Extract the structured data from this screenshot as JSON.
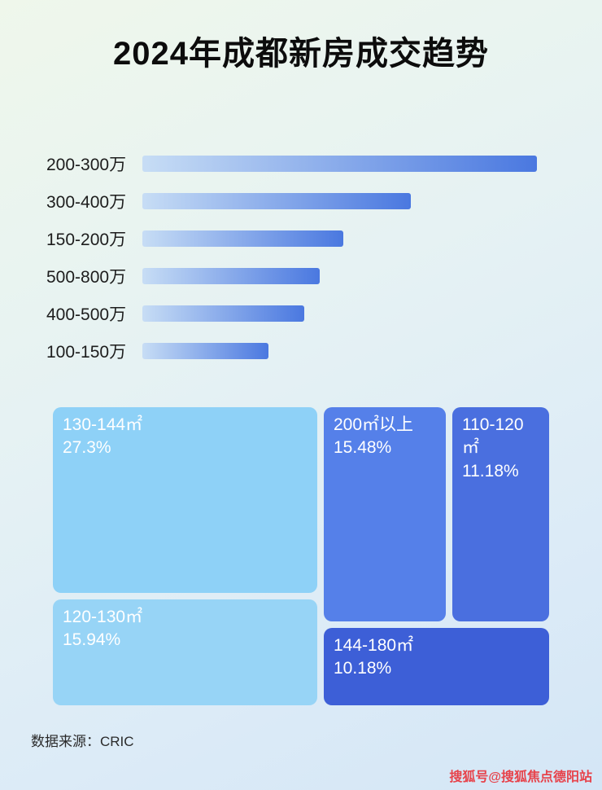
{
  "title": "2024年成都新房成交趋势",
  "colors": {
    "bar_gradient_start": "#c7ddf5",
    "bar_gradient_end": "#4a78e0"
  },
  "treemap_blocks": [
    {
      "label": "130-144㎡",
      "pct_text": "27.3%",
      "color": "#8ed1f7"
    },
    {
      "label": "120-130㎡",
      "pct_text": "15.94%",
      "color": "#97d4f6"
    },
    {
      "label": "200㎡以上",
      "pct_text": "15.48%",
      "color": "#5580e9"
    },
    {
      "label": "110-120㎡",
      "pct_text": "11.18%",
      "color": "#4a6fdf"
    },
    {
      "label": "144-180㎡",
      "pct_text": "10.18%",
      "color": "#3d5fd7"
    }
  ],
  "footer": {
    "source": "数据来源：CRIC"
  },
  "watermark": "搜狐号@搜狐焦点德阳站",
  "chart_data": [
    {
      "type": "bar",
      "orientation": "horizontal",
      "title": "2024年成都新房成交趋势",
      "categories": [
        "200-300万",
        "300-400万",
        "150-200万",
        "500-800万",
        "400-500万",
        "100-150万"
      ],
      "values": [
        100,
        68,
        51,
        45,
        41,
        32
      ],
      "value_note": "relative bar length as % of longest bar; no numeric axis or data labels shown",
      "xlabel": "",
      "ylabel": "",
      "grid": false,
      "legend": false
    },
    {
      "type": "treemap",
      "title": "",
      "categories": [
        "130-144㎡",
        "120-130㎡",
        "200㎡以上",
        "110-120㎡",
        "144-180㎡"
      ],
      "values": [
        27.3,
        15.94,
        15.48,
        11.18,
        10.18
      ],
      "value_unit": "percent",
      "legend": false
    }
  ]
}
